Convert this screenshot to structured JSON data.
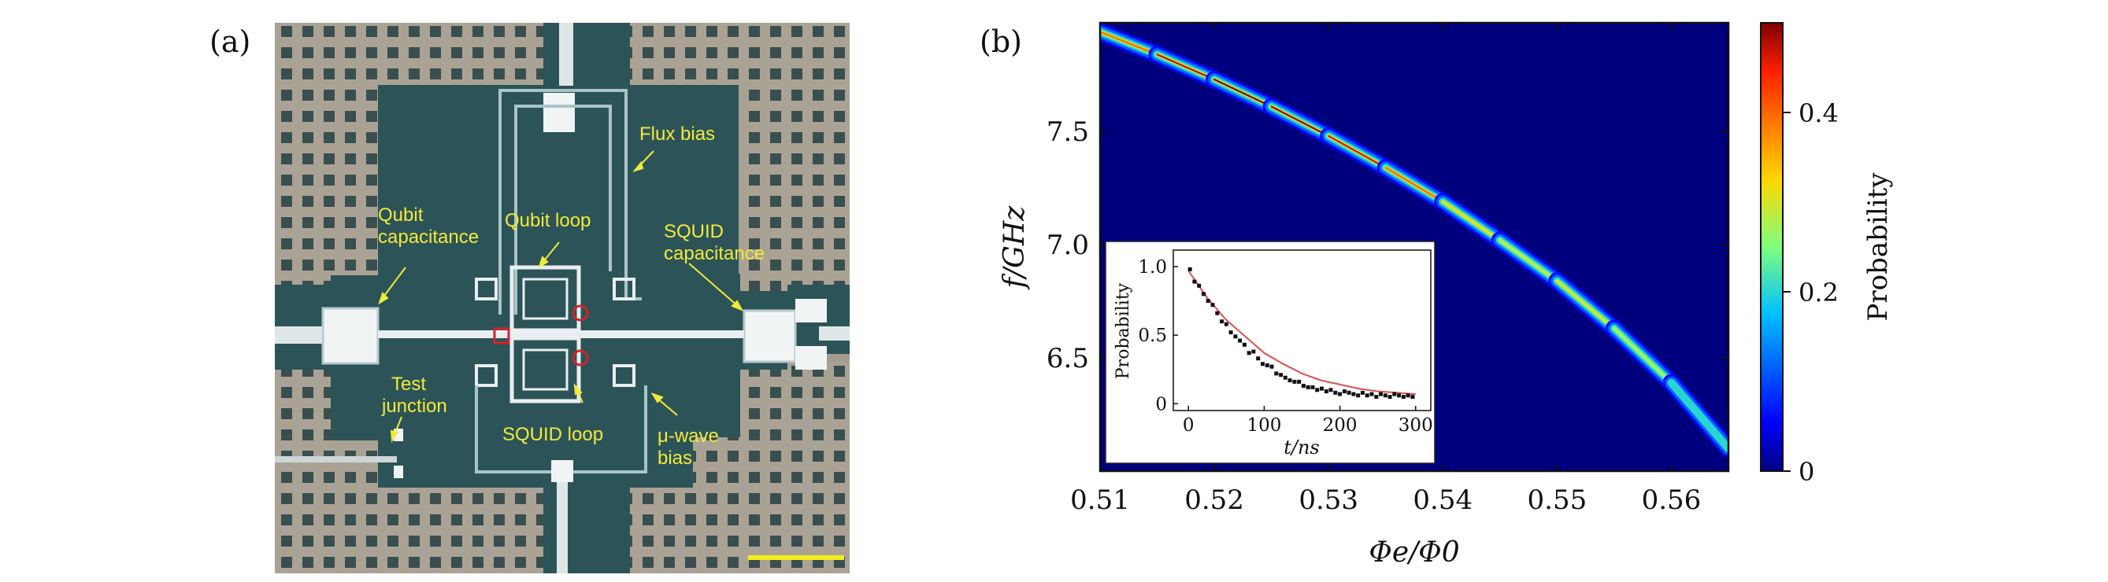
{
  "panel_a": {
    "label": "(a)",
    "annotations": {
      "flux_bias": "Flux bias",
      "qubit_capacitance_1": "Qubit",
      "qubit_capacitance_2": "capacitance",
      "qubit_loop": "Qubit loop",
      "squid_capacitance_1": "SQUID",
      "squid_capacitance_2": "capacitance",
      "test_junction_1": "Test",
      "test_junction_2": "junction",
      "squid_loop": "SQUID loop",
      "mu_wave_bias_1": "μ-wave",
      "mu_wave_bias_2": "bias"
    },
    "colors": {
      "substrate": "#a9a394",
      "metal": "#2c5458",
      "wire": "#e9eef0",
      "annotation": "#f2ea3a",
      "scale_bar": "#f5ee1a",
      "junction_marker": "#d2232a"
    }
  },
  "panel_b": {
    "label": "(b)",
    "colorbar": {
      "label": "Probability",
      "ticks": [
        "0",
        "0.2",
        "0.4"
      ],
      "range": [
        0,
        0.5
      ],
      "colormap": "jet"
    }
  },
  "chart_data": [
    {
      "type": "heatmap",
      "title": "",
      "xlabel": "Φe/Φ0",
      "ylabel": "f/GHz",
      "xlim": [
        0.51,
        0.565
      ],
      "ylim": [
        6.0,
        7.98
      ],
      "xticks": [
        "0.51",
        "0.52",
        "0.53",
        "0.54",
        "0.55",
        "0.56"
      ],
      "yticks": [
        "6.5",
        "7.0",
        "7.5"
      ],
      "background_value": 0,
      "ridge": {
        "x": [
          0.51,
          0.515,
          0.52,
          0.525,
          0.53,
          0.535,
          0.54,
          0.545,
          0.55,
          0.555,
          0.56,
          0.565
        ],
        "f": [
          7.94,
          7.84,
          7.73,
          7.61,
          7.48,
          7.34,
          7.19,
          7.02,
          6.84,
          6.63,
          6.39,
          6.1
        ],
        "peak_probability": [
          0.35,
          0.45,
          0.5,
          0.5,
          0.48,
          0.45,
          0.35,
          0.25,
          0.3,
          0.28,
          0.25,
          0.15
        ]
      }
    },
    {
      "type": "scatter",
      "title": "",
      "xlabel": "t/ns",
      "ylabel": "Probability",
      "xlim": [
        -20,
        320
      ],
      "ylim": [
        -0.05,
        1.12
      ],
      "xticks": [
        "0",
        "100",
        "200",
        "300"
      ],
      "yticks": [
        "0",
        "0.5",
        "1.0"
      ],
      "series": [
        {
          "x": [
            2,
            8,
            14,
            20,
            26,
            32,
            38,
            44,
            50,
            56,
            62,
            68,
            74,
            80,
            86,
            92,
            98,
            104,
            110,
            116,
            122,
            128,
            134,
            140,
            146,
            152,
            158,
            164,
            170,
            176,
            182,
            188,
            194,
            200,
            206,
            212,
            218,
            224,
            230,
            236,
            242,
            248,
            254,
            260,
            266,
            272,
            278,
            284,
            290,
            296
          ],
          "y": [
            0.98,
            0.89,
            0.86,
            0.8,
            0.75,
            0.72,
            0.66,
            0.6,
            0.58,
            0.52,
            0.49,
            0.46,
            0.43,
            0.37,
            0.38,
            0.33,
            0.29,
            0.28,
            0.27,
            0.22,
            0.21,
            0.19,
            0.17,
            0.16,
            0.16,
            0.13,
            0.12,
            0.12,
            0.1,
            0.11,
            0.09,
            0.1,
            0.08,
            0.07,
            0.09,
            0.08,
            0.07,
            0.06,
            0.08,
            0.06,
            0.07,
            0.05,
            0.07,
            0.06,
            0.05,
            0.07,
            0.06,
            0.05,
            0.06,
            0.05
          ]
        },
        {
          "fit": "exponential",
          "x": [
            0,
            25,
            50,
            75,
            100,
            125,
            150,
            175,
            200,
            225,
            250,
            275,
            300
          ],
          "y": [
            0.97,
            0.77,
            0.61,
            0.49,
            0.37,
            0.29,
            0.22,
            0.17,
            0.14,
            0.11,
            0.09,
            0.08,
            0.07
          ]
        }
      ]
    }
  ]
}
